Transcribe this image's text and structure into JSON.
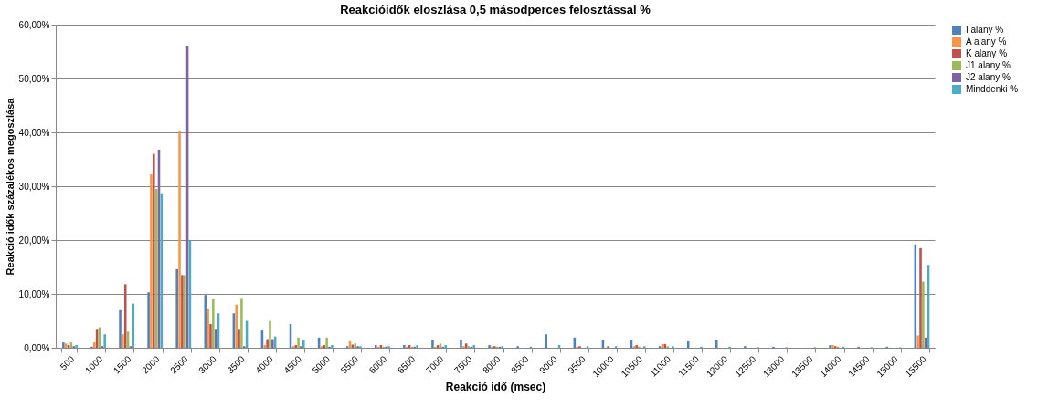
{
  "chart_data": {
    "type": "bar",
    "title": "Reakcióidők eloszlása 0,5 másodperces felosztással %",
    "xlabel": "Reakció idő (msec)",
    "ylabel": "Reakció idők százalékos megoszlása",
    "categories": [
      "500",
      "1000",
      "1500",
      "2000",
      "2500",
      "3000",
      "3500",
      "4000",
      "4500",
      "5000",
      "5500",
      "6000",
      "6500",
      "7000",
      "7500",
      "8000",
      "8500",
      "9000",
      "9500",
      "10000",
      "10500",
      "11000",
      "11500",
      "12000",
      "12500",
      "13000",
      "13500",
      "14000",
      "14500",
      "15000",
      "15500"
    ],
    "series": [
      {
        "name": "I alany %",
        "color": "#4f81bd",
        "values": [
          1.0,
          0.2,
          7.0,
          10.3,
          14.6,
          9.8,
          6.4,
          3.2,
          4.4,
          1.9,
          0.3,
          0.5,
          0.5,
          1.5,
          1.5,
          0.5,
          0.3,
          2.5,
          1.9,
          1.5,
          1.5,
          0.3,
          1.2,
          1.5,
          0.3,
          0.2,
          null,
          0.5,
          0.2,
          0.2,
          19.2
        ]
      },
      {
        "name": "A alany %",
        "color": "#f79646",
        "values": [
          0.8,
          1.0,
          2.5,
          32.2,
          40.3,
          7.3,
          8.0,
          0.5,
          0.3,
          0.3,
          1.2,
          0.2,
          0.2,
          0.2,
          0.3,
          0.2,
          0,
          0,
          0.2,
          0,
          0.3,
          0.7,
          0,
          0,
          0,
          0,
          0,
          0.5,
          0,
          0,
          2.3
        ]
      },
      {
        "name": "K alany %",
        "color": "#c0504d",
        "values": [
          0.5,
          3.5,
          11.8,
          36.0,
          13.5,
          4.4,
          3.5,
          1.6,
          0.5,
          0.5,
          0.6,
          0.5,
          0.5,
          0.5,
          0.8,
          0.3,
          0,
          0,
          0.3,
          0.3,
          0.5,
          0.7,
          0,
          0,
          0,
          0,
          0,
          0.3,
          0,
          0,
          18.5
        ]
      },
      {
        "name": "J1 alany %",
        "color": "#9bbb59",
        "values": [
          1.0,
          3.8,
          3.0,
          29.5,
          13.5,
          9.0,
          9.1,
          5.0,
          1.9,
          1.9,
          0.8,
          0.2,
          0.2,
          0.8,
          0.3,
          0.2,
          0,
          0,
          0,
          0,
          0.2,
          0.3,
          0,
          0,
          0,
          0,
          0,
          0.2,
          0,
          0,
          12.3
        ]
      },
      {
        "name": "J2 alany %",
        "color": "#8064a2",
        "values": [
          0.3,
          0.3,
          0.3,
          36.8,
          56.1,
          3.5,
          0.3,
          1.6,
          0.3,
          0.2,
          0.3,
          0.2,
          0.2,
          0.2,
          0.2,
          0.2,
          0,
          0,
          0,
          0,
          0,
          0,
          0,
          0,
          0,
          0,
          0,
          0,
          0,
          0,
          1.9
        ]
      },
      {
        "name": "Minddenki %",
        "color": "#4bacc6",
        "values": [
          0.5,
          2.5,
          8.2,
          28.7,
          20.0,
          6.4,
          5.0,
          2.1,
          1.5,
          0.5,
          0.3,
          0.3,
          0.5,
          0.5,
          0.5,
          0.3,
          0.2,
          0.5,
          0.3,
          0.3,
          0.3,
          0.3,
          0.2,
          0.2,
          0.1,
          0.1,
          0.1,
          0.2,
          0.1,
          0.1,
          15.4
        ]
      }
    ],
    "ylim": [
      0,
      60
    ],
    "yticks": [
      {
        "value": 0,
        "label": "0,00%"
      },
      {
        "value": 10,
        "label": "10,00%"
      },
      {
        "value": 20,
        "label": "20,00%"
      },
      {
        "value": 30,
        "label": "30,00%"
      },
      {
        "value": 40,
        "label": "40,00%"
      },
      {
        "value": 50,
        "label": "50,00%"
      },
      {
        "value": 60,
        "label": "60,00%"
      }
    ],
    "grid": "y",
    "legend": "right"
  }
}
